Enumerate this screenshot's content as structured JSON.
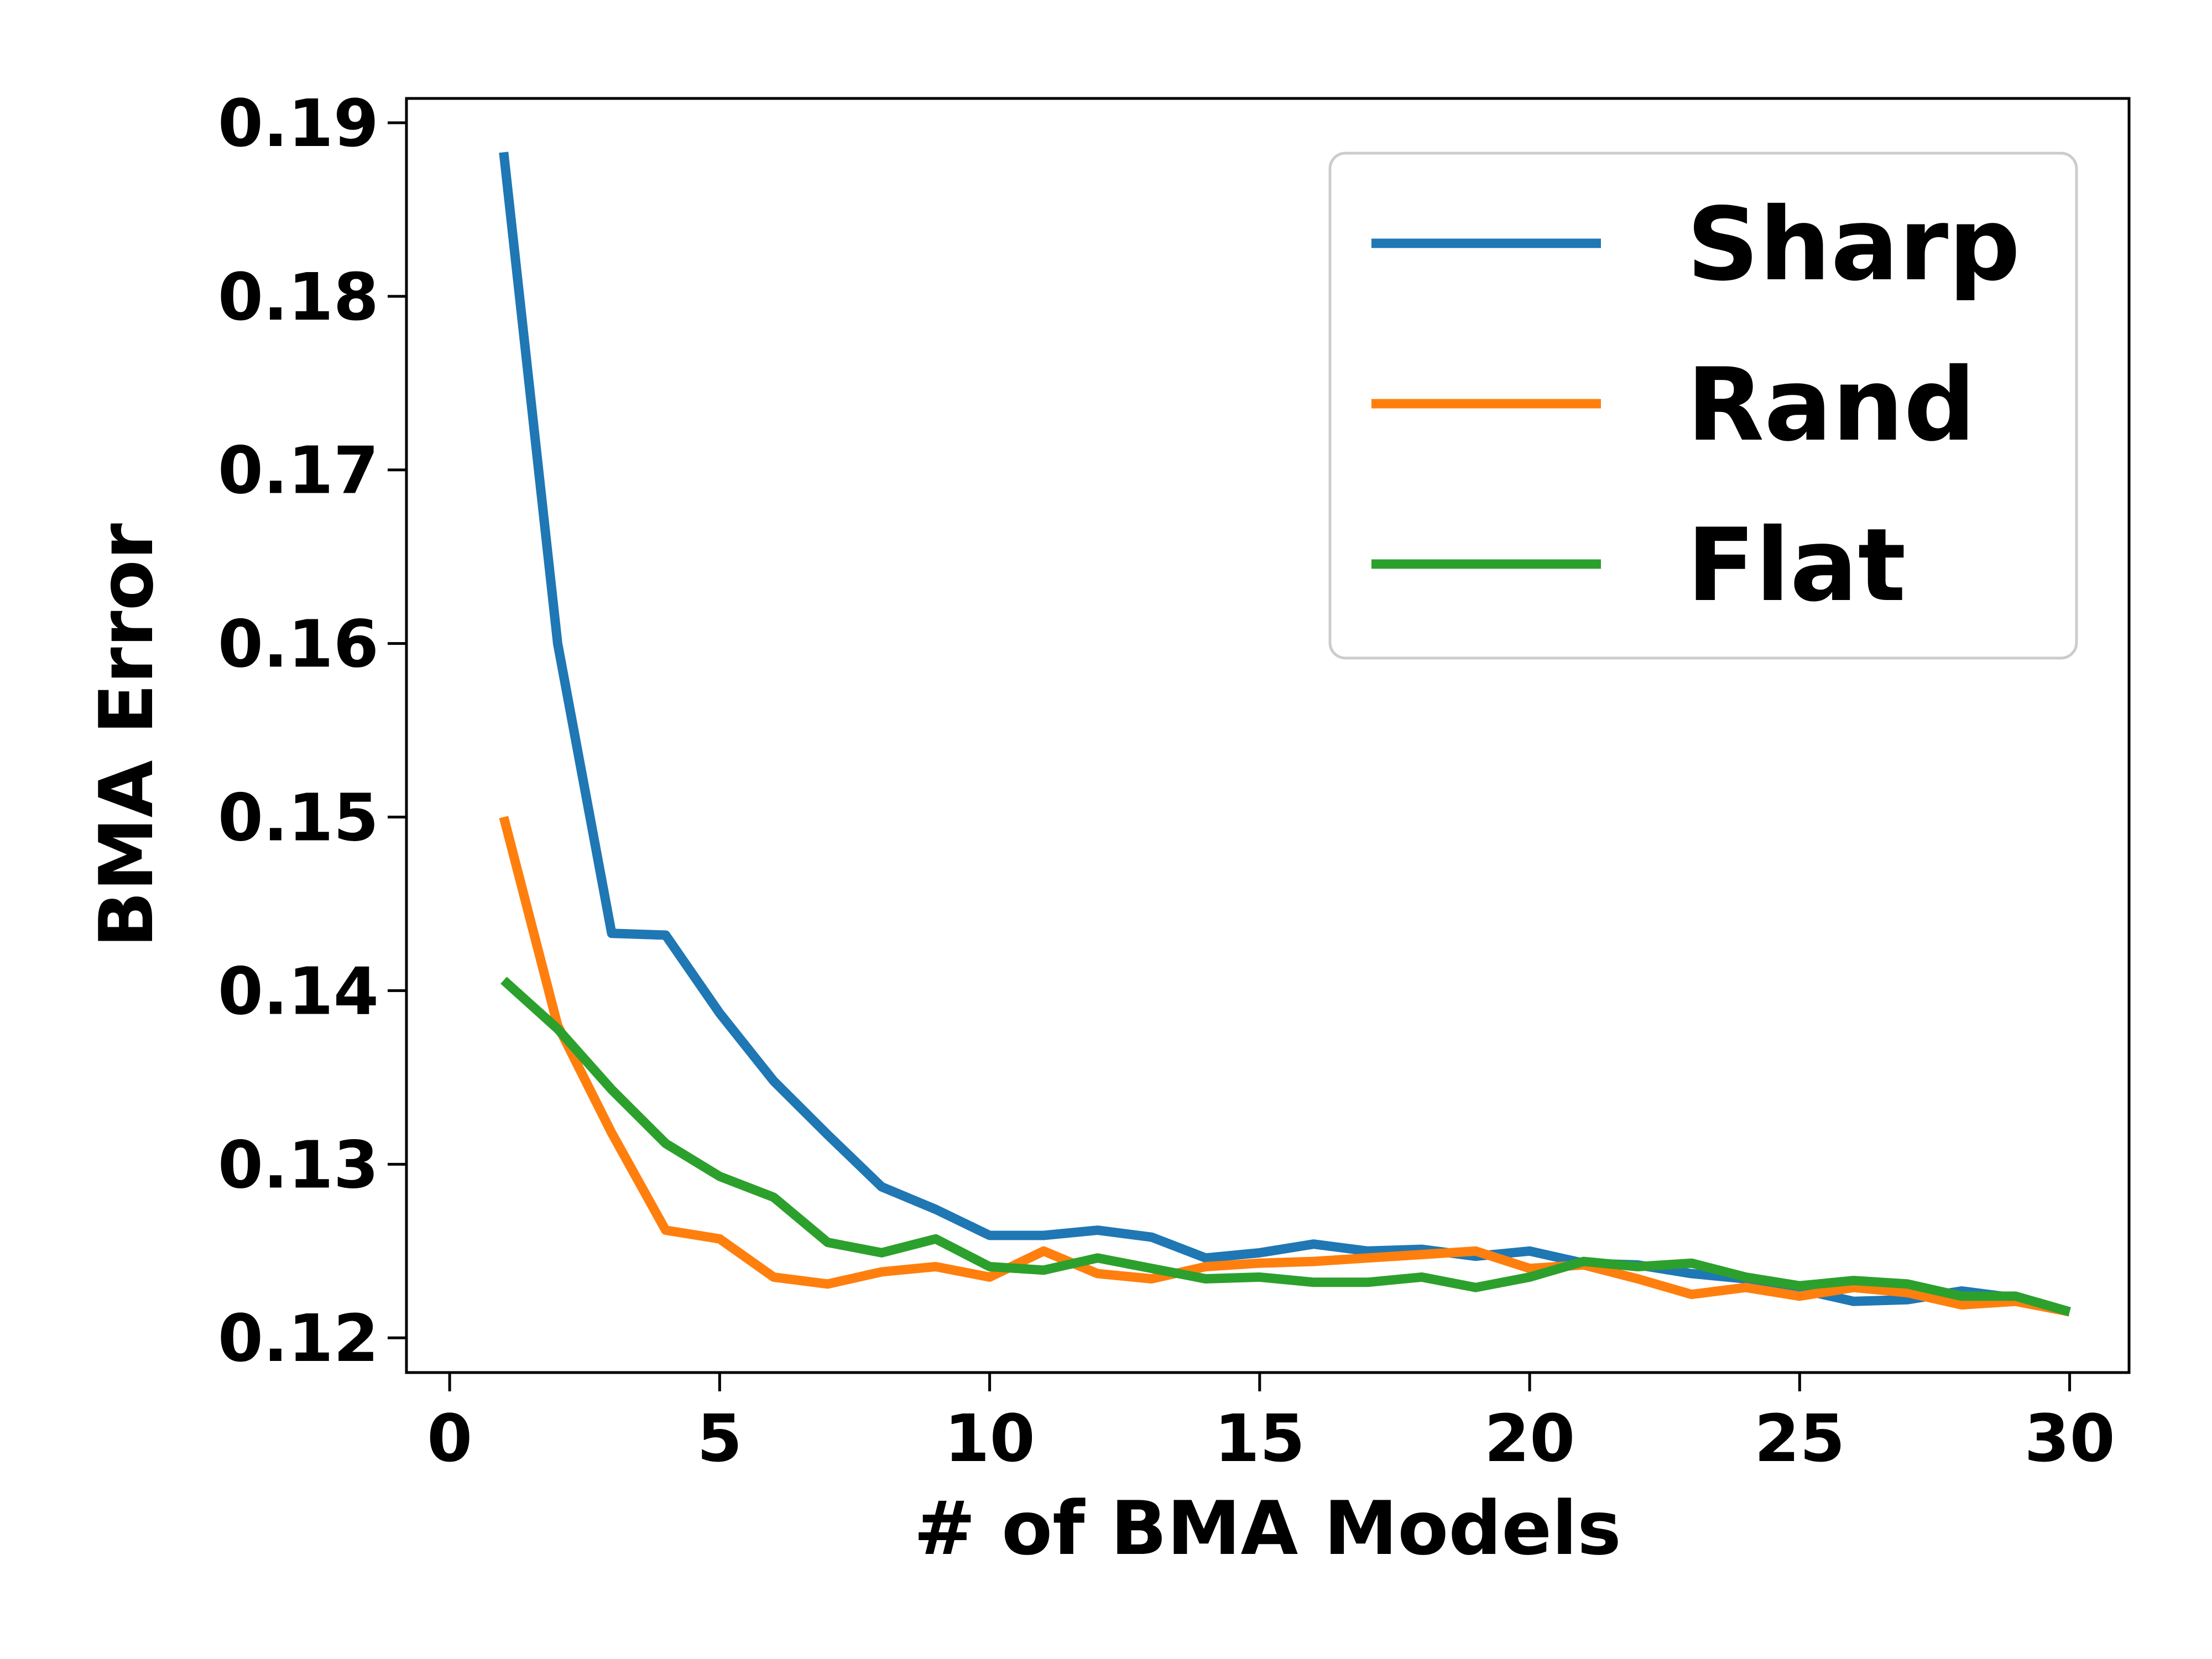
{
  "chart_data": {
    "type": "line",
    "xlabel": "# of BMA Models",
    "ylabel": "BMA Error",
    "xlim": [
      -0.8,
      31.1
    ],
    "ylim": [
      0.118,
      0.1914
    ],
    "x_ticks": [
      0,
      5,
      10,
      15,
      20,
      25,
      30
    ],
    "x_tick_labels": [
      "0",
      "5",
      "10",
      "15",
      "20",
      "25",
      "30"
    ],
    "y_ticks": [
      0.12,
      0.13,
      0.14,
      0.15,
      0.16,
      0.17,
      0.18,
      0.19
    ],
    "y_tick_labels": [
      "0.12",
      "0.13",
      "0.14",
      "0.15",
      "0.16",
      "0.17",
      "0.18",
      "0.19"
    ],
    "grid": false,
    "legend_position": "top-right",
    "x": [
      1,
      2,
      3,
      4,
      5,
      6,
      7,
      8,
      9,
      10,
      11,
      12,
      13,
      14,
      15,
      16,
      17,
      18,
      19,
      20,
      21,
      22,
      23,
      24,
      25,
      26,
      27,
      28,
      29,
      30
    ],
    "series": [
      {
        "name": "Sharp",
        "color": "#1f77b4",
        "values": [
          0.1883,
          0.16,
          0.1433,
          0.1432,
          0.1387,
          0.1348,
          0.1317,
          0.1287,
          0.1274,
          0.1259,
          0.1259,
          0.1262,
          0.1258,
          0.1246,
          0.1249,
          0.1254,
          0.125,
          0.1251,
          0.1247,
          0.125,
          0.1243,
          0.1242,
          0.1237,
          0.1234,
          0.1228,
          0.1221,
          0.1222,
          0.1227,
          0.1223,
          0.1215
        ]
      },
      {
        "name": "Rand",
        "color": "#ff7f0e",
        "values": [
          0.15,
          0.138,
          0.1318,
          0.1262,
          0.1257,
          0.1235,
          0.1231,
          0.1238,
          0.1241,
          0.1235,
          0.125,
          0.1237,
          0.1234,
          0.1241,
          0.1243,
          0.1244,
          0.1246,
          0.1248,
          0.125,
          0.124,
          0.1242,
          0.1234,
          0.1225,
          0.1229,
          0.1224,
          0.1229,
          0.1226,
          0.1219,
          0.1221,
          0.1215
        ]
      },
      {
        "name": "Flat",
        "color": "#2ca02c",
        "values": [
          0.1406,
          0.1378,
          0.1343,
          0.1312,
          0.1293,
          0.1281,
          0.1255,
          0.1249,
          0.1257,
          0.1241,
          0.1239,
          0.1246,
          0.124,
          0.1234,
          0.1235,
          0.1232,
          0.1232,
          0.1235,
          0.1229,
          0.1235,
          0.1244,
          0.1241,
          0.1243,
          0.1235,
          0.123,
          0.1233,
          0.1231,
          0.1224,
          0.1224,
          0.1215
        ]
      }
    ]
  }
}
